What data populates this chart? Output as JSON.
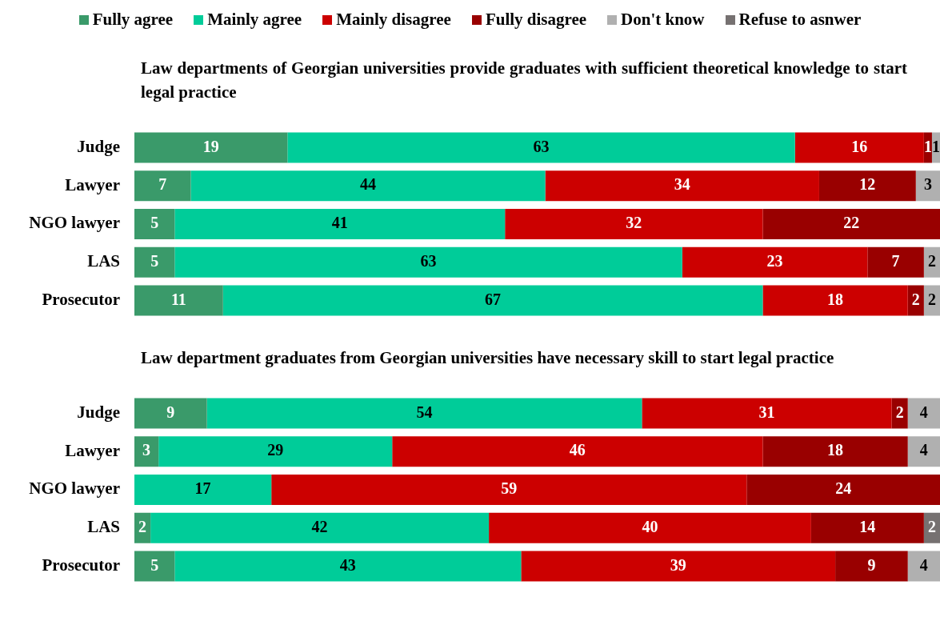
{
  "chart_data": [
    {
      "type": "bar",
      "orientation": "horizontal",
      "stacked": true,
      "title": "Law departments of Georgian universities provide graduates with sufficient theoretical knowledge to start legal practice",
      "categories": [
        "Judge",
        "Lawyer",
        "NGO lawyer",
        "LAS",
        "Prosecutor"
      ],
      "xlim": [
        0,
        100
      ],
      "tick_labels": "y",
      "grid": false,
      "legend": "top",
      "data_labels": true,
      "series": [
        {
          "name": "Fully agree",
          "color": "#3a9a6a",
          "values": [
            19,
            7,
            5,
            5,
            11
          ]
        },
        {
          "name": "Mainly agree",
          "color": "#00cc99",
          "values": [
            63,
            44,
            41,
            63,
            67
          ]
        },
        {
          "name": "Mainly disagree",
          "color": "#cc0000",
          "values": [
            16,
            34,
            32,
            23,
            18
          ]
        },
        {
          "name": "Fully disagree",
          "color": "#990000",
          "values": [
            1,
            12,
            22,
            7,
            2
          ]
        },
        {
          "name": "Don't know",
          "color": "#b0b0b0",
          "values": [
            1,
            3,
            null,
            2,
            2
          ]
        },
        {
          "name": "Refuse to asnwer",
          "color": "#767171",
          "values": [
            null,
            null,
            null,
            null,
            null
          ]
        }
      ]
    },
    {
      "type": "bar",
      "orientation": "horizontal",
      "stacked": true,
      "title": "Law department graduates from Georgian universities have necessary skill to start legal practice",
      "categories": [
        "Judge",
        "Lawyer",
        "NGO lawyer",
        "LAS",
        "Prosecutor"
      ],
      "xlim": [
        0,
        100
      ],
      "tick_labels": "y",
      "grid": false,
      "data_labels": true,
      "series": [
        {
          "color": "#3a9a6a",
          "values": [
            9,
            3,
            null,
            2,
            5
          ]
        },
        {
          "color": "#00cc99",
          "values": [
            54,
            29,
            17,
            42,
            43
          ]
        },
        {
          "color": "#cc0000",
          "values": [
            31,
            46,
            59,
            40,
            39
          ]
        },
        {
          "color": "#990000",
          "values": [
            2,
            18,
            24,
            14,
            9
          ]
        },
        {
          "color": "#b0b0b0",
          "values": [
            4,
            4,
            null,
            null,
            4
          ]
        },
        {
          "color": "#767171",
          "values": [
            null,
            null,
            null,
            2,
            null
          ]
        }
      ]
    }
  ]
}
